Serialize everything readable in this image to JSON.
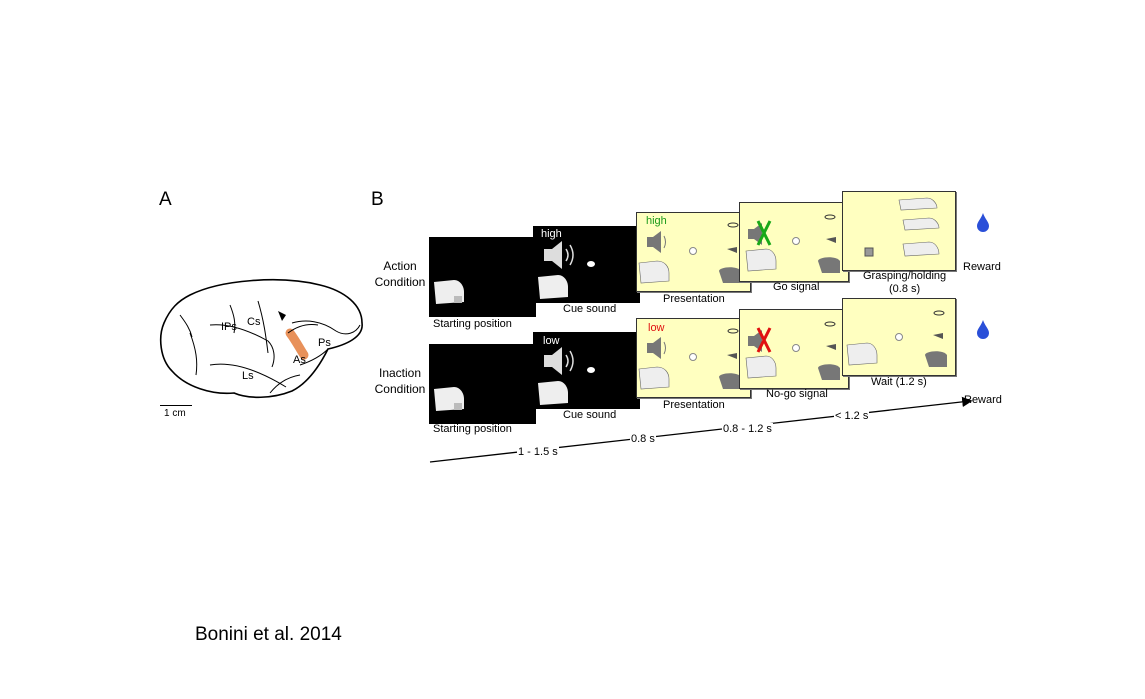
{
  "panel_a": {
    "letter": "A",
    "sulci": {
      "ips": "IPs",
      "cs": "Cs",
      "as": "As",
      "ps": "Ps",
      "ls": "Ls"
    },
    "scale_bar": "1 cm",
    "colors": {
      "highlight": "#e8915a"
    }
  },
  "panel_b": {
    "letter": "B",
    "action": {
      "condition_label": "Action\nCondition",
      "stage_labels": [
        "Starting position",
        "Cue sound",
        "Presentation",
        "Go signal",
        "Grasping/holding\n(0.8 s)"
      ],
      "cue_word": "high",
      "pres_word": "high",
      "reward": "Reward"
    },
    "inaction": {
      "condition_label": "Inaction\nCondition",
      "stage_labels": [
        "Starting position",
        "Cue sound",
        "Presentation",
        "No-go signal",
        "Wait (1.2 s)"
      ],
      "cue_word": "low",
      "pres_word": "low",
      "reward": "Reward"
    },
    "timeline": {
      "intervals": [
        "1 - 1.5 s",
        "0.8 s",
        "0.8 - 1.2 s",
        "< 1.2 s"
      ],
      "end_label": "Reward"
    },
    "colors": {
      "high": "#1a9a1a",
      "low": "#e01010",
      "go_x": "#18a818",
      "nogo_x": "#e01010",
      "panel_fill": "#ffffc0",
      "drop": "#2a4fd8"
    }
  },
  "citation": "Bonini et al. 2014"
}
